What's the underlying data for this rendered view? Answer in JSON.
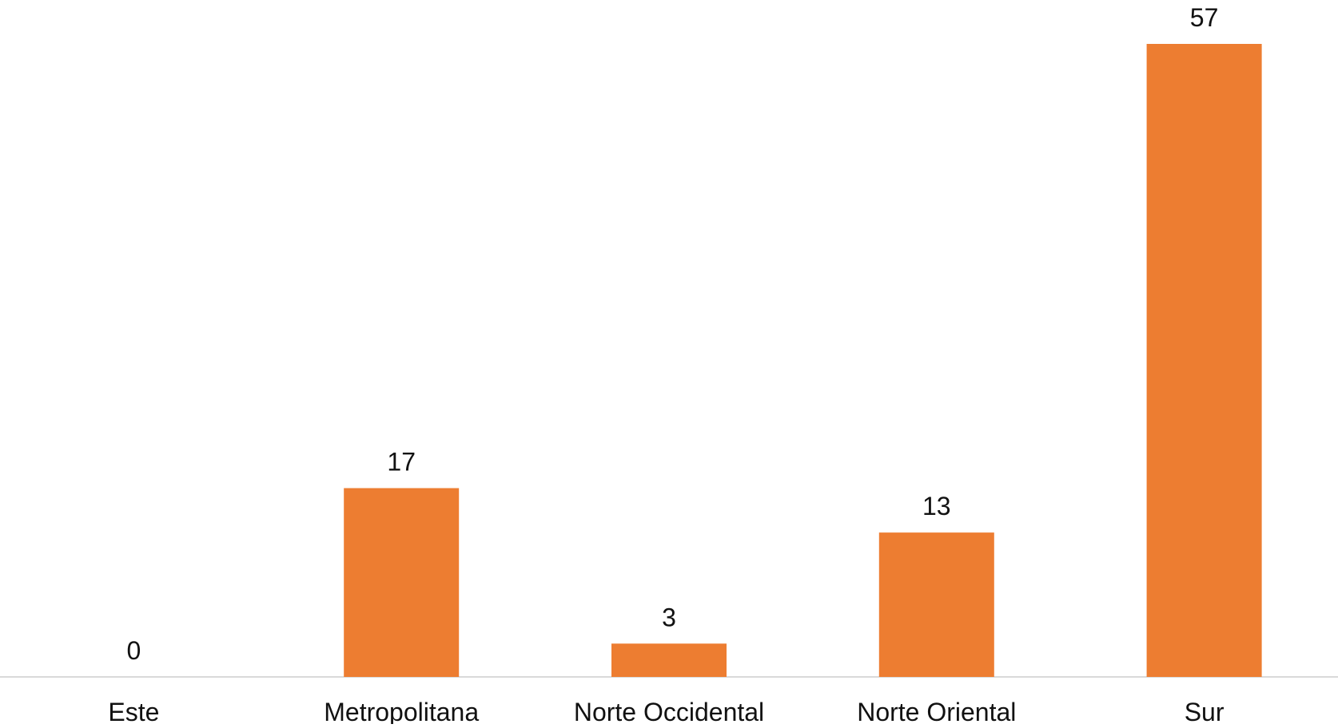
{
  "chart_data": {
    "type": "bar",
    "title": "",
    "xlabel": "",
    "ylabel": "",
    "categories": [
      "Este",
      "Metropolitana",
      "Norte Occidental",
      "Norte Oriental",
      "Sur"
    ],
    "values": [
      0,
      17,
      3,
      13,
      57
    ],
    "data_labels": [
      "0",
      "17",
      "3",
      "13",
      "57"
    ],
    "ylim": [
      0,
      57
    ],
    "grid": false,
    "legend": "none",
    "bar_color": "#ED7D31",
    "axis_color": "#D9D9D9"
  }
}
